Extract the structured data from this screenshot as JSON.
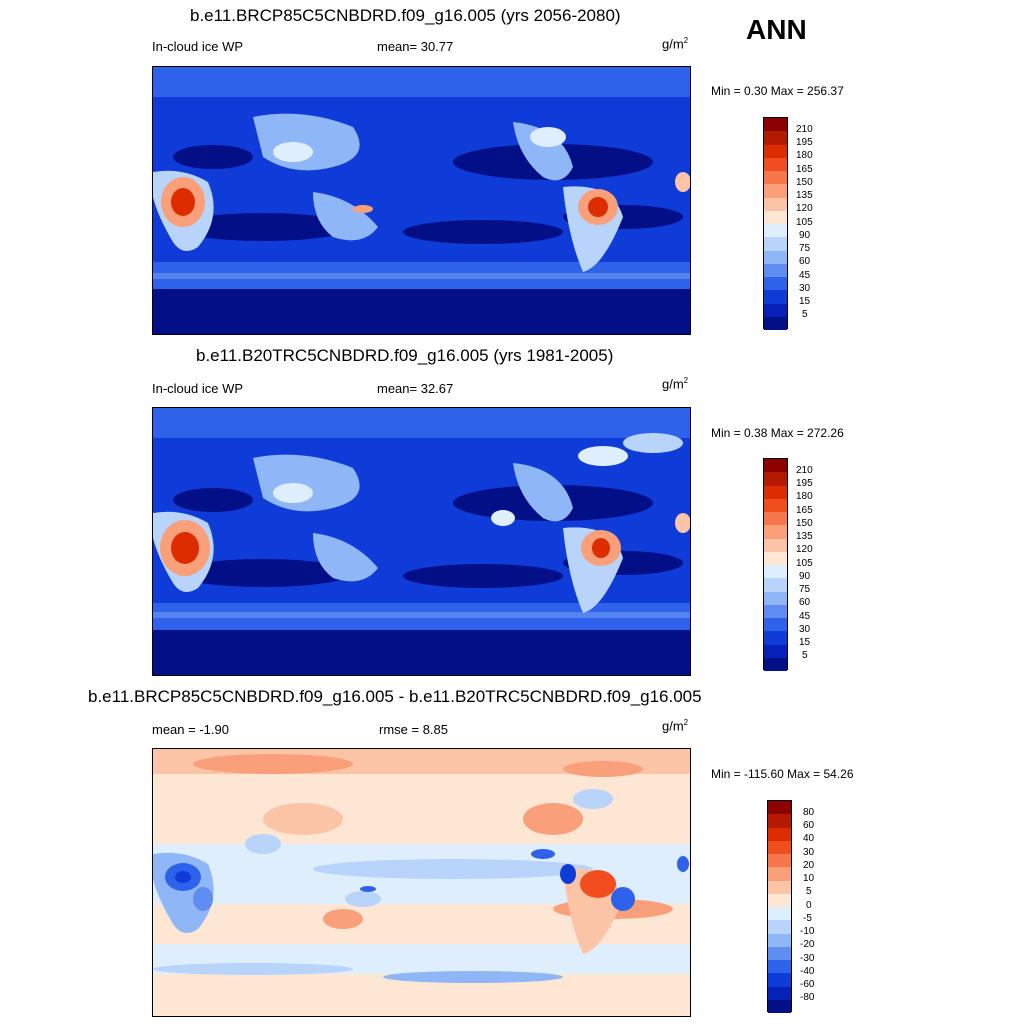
{
  "season": "ANN",
  "panels": [
    {
      "title": "b.e11.BRCP85C5CNBDRD.f09_g16.005 (yrs 2056-2080)",
      "left_label": "In-cloud ice WP",
      "mid_label": "mean=  30.77",
      "units_base": "g/m",
      "units_exp": "2",
      "minmax": "Min =   0.30 Max = 256.37"
    },
    {
      "title": "b.e11.B20TRC5CNBDRD.f09_g16.005 (yrs 1981-2005)",
      "left_label": "In-cloud ice WP",
      "mid_label": "mean=  32.67",
      "units_base": "g/m",
      "units_exp": "2",
      "minmax": "Min =   0.38 Max = 272.26"
    },
    {
      "title": "b.e11.BRCP85C5CNBDRD.f09_g16.005 - b.e11.B20TRC5CNBDRD.f09_g16.005",
      "left_label": "mean =  -1.90",
      "mid_label": "rmse =   8.85",
      "units_base": "g/m",
      "units_exp": "2",
      "minmax": "Min = -115.60 Max =  54.26"
    }
  ],
  "colorbars": {
    "abs": {
      "levels": [
        "210",
        "195",
        "180",
        "165",
        "150",
        "135",
        "120",
        "105",
        "90",
        "75",
        "60",
        "45",
        "30",
        "15",
        "5"
      ],
      "colors": [
        "#8b0000",
        "#b51a00",
        "#dd2c00",
        "#f04e1e",
        "#f7774a",
        "#f9a07a",
        "#fbc4a6",
        "#fde6d4",
        "#dfeefc",
        "#b8d4fb",
        "#8fb6f7",
        "#5f8df2",
        "#2f62ea",
        "#0f3cd8",
        "#0521b7",
        "#030f86"
      ]
    },
    "diff": {
      "levels": [
        "80",
        "60",
        "40",
        "30",
        "20",
        "10",
        "5",
        "0",
        "-5",
        "-10",
        "-20",
        "-30",
        "-40",
        "-60",
        "-80"
      ],
      "colors": [
        "#8b0000",
        "#b51a00",
        "#dd2c00",
        "#f04e1e",
        "#f7774a",
        "#f9a07a",
        "#fbc4a6",
        "#fde6d4",
        "#dfeefc",
        "#b8d4fb",
        "#8fb6f7",
        "#5f8df2",
        "#2f62ea",
        "#0f3cd8",
        "#0521b7",
        "#030f86"
      ]
    }
  },
  "maps": [
    {
      "projection": "cylindrical equidistant",
      "center_longitude": 0,
      "fill": "filled contours",
      "color_scale": "abs"
    },
    {
      "projection": "cylindrical equidistant",
      "center_longitude": 0,
      "fill": "filled contours",
      "color_scale": "abs"
    },
    {
      "projection": "cylindrical equidistant",
      "center_longitude": 0,
      "fill": "filled contours",
      "color_scale": "diff"
    }
  ]
}
